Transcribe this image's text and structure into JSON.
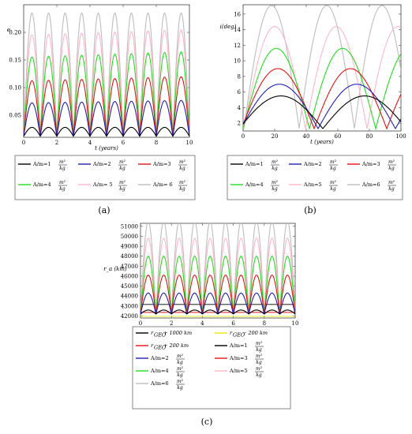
{
  "chart_data": [
    {
      "type": "line",
      "panel_label": "(a)",
      "xlabel": "t (years)",
      "ylabel": "e",
      "xlim": [
        0,
        10
      ],
      "ylim": [
        0.01,
        0.25
      ],
      "xticks": [
        "0",
        "2",
        "4",
        "6",
        "8",
        "10"
      ],
      "yticks": [
        "0.05",
        "0.10",
        "0.15",
        "0.20"
      ],
      "model": "periodic-arches",
      "period": 1.0,
      "x_peak_first": 0.5,
      "series": [
        {
          "name": "A/m=1",
          "min": 0.012,
          "max": 0.028,
          "trend": 0.0,
          "color": "#000000"
        },
        {
          "name": "A/m=2",
          "min": 0.012,
          "max": 0.072,
          "trend": 0.0005,
          "color": "#1f1fb4"
        },
        {
          "name": "A/m=3",
          "min": 0.012,
          "max": 0.112,
          "trend": 0.0008,
          "color": "#e01414"
        },
        {
          "name": "A/m=4",
          "min": 0.012,
          "max": 0.155,
          "trend": 0.001,
          "color": "#22dd22"
        },
        {
          "name": "A/m=5",
          "min": 0.012,
          "max": 0.195,
          "trend": 0.001,
          "color": "#ffb6c8"
        },
        {
          "name": "A/m=6",
          "min": 0.012,
          "max": 0.235,
          "trend": 0.0,
          "color": "#bdbdbd"
        }
      ],
      "legend_unit_num": "m²",
      "legend_unit_den": "kg",
      "legend_labels": [
        "A/m=1",
        "A/m=2",
        "A/m=3",
        "A/m=4",
        "A/m= 5",
        "A/m= 6"
      ]
    },
    {
      "type": "line",
      "panel_label": "(b)",
      "xlabel": "t (years)",
      "ylabel": "i(deg)",
      "xlim": [
        0,
        100
      ],
      "ylim": [
        1,
        17.2
      ],
      "xticks": [
        "0",
        "20",
        "40",
        "60",
        "80",
        "100"
      ],
      "yticks": [
        "2",
        "4",
        "6",
        "8",
        "10",
        "12",
        "14",
        "16"
      ],
      "model": "periodic-arches",
      "series": [
        {
          "name": "A/m=1",
          "min": 1.3,
          "max": 5.5,
          "period": 53,
          "x_peak_first": 24,
          "color": "#000000"
        },
        {
          "name": "A/m=2",
          "min": 1.3,
          "max": 7.0,
          "period": 49,
          "x_peak_first": 23,
          "color": "#1f1fb4"
        },
        {
          "name": "A/m=3",
          "min": 1.3,
          "max": 9.0,
          "period": 46,
          "x_peak_first": 22,
          "color": "#e01414"
        },
        {
          "name": "A/m=4",
          "min": 1.3,
          "max": 11.6,
          "period": 42,
          "x_peak_first": 21,
          "color": "#22dd22"
        },
        {
          "name": "A/m=5",
          "min": 1.3,
          "max": 14.4,
          "period": 39,
          "x_peak_first": 20,
          "color": "#ffb6c8"
        },
        {
          "name": "A/m=6",
          "min": 1.3,
          "max": 17.1,
          "period": 35,
          "x_peak_first": 18,
          "color": "#bdbdbd"
        }
      ],
      "legend_unit_num": "m²",
      "legend_unit_den": "kg",
      "legend_labels": [
        "A/m=1",
        "A/m=2",
        "A/m=3",
        "A/m=4",
        "A/m=5",
        "A/m=6"
      ]
    },
    {
      "type": "line",
      "panel_label": "(c)",
      "xlabel": "t (years)",
      "ylabel": "r_a (km)",
      "xlim": [
        0,
        10
      ],
      "ylim": [
        41800,
        51300
      ],
      "xticks": [
        "0",
        "2",
        "4",
        "6",
        "8",
        "10"
      ],
      "yticks": [
        "42000",
        "43000",
        "44000",
        "45000",
        "46000",
        "47000",
        "48000",
        "49000",
        "50000",
        "51000"
      ],
      "model": "periodic-arches",
      "period": 1.0,
      "x_peak_first": 0.5,
      "reference_lines": [
        {
          "name": "r_GEO + 1000 km",
          "value": 43164,
          "color": "#000000"
        },
        {
          "name": "r_GEO − 200 km",
          "value": 41964,
          "color": "#e6e600"
        },
        {
          "name": "r_GEO + 200 km",
          "value": 42364,
          "color": "#e01414"
        }
      ],
      "series": [
        {
          "name": "A/m=1",
          "min": 42200,
          "max": 42600,
          "color": "#000000"
        },
        {
          "name": "A/m=2",
          "min": 42200,
          "max": 44300,
          "color": "#1f1fb4"
        },
        {
          "name": "A/m=3",
          "min": 42200,
          "max": 46100,
          "color": "#e01414"
        },
        {
          "name": "A/m=4",
          "min": 42200,
          "max": 48000,
          "color": "#22dd22"
        },
        {
          "name": "A/m=5",
          "min": 42200,
          "max": 49800,
          "color": "#ffb6c8"
        },
        {
          "name": "A/m=6",
          "min": 42200,
          "max": 51500,
          "color": "#bdbdbd"
        }
      ],
      "legend_unit_num": "m²",
      "legend_unit_den": "kg",
      "legend_labels": [
        "A/m=1",
        "A/m=2",
        "A/m=3",
        "A/m=4",
        "A/m=5",
        "A/m=6"
      ],
      "legend_ref_labels": [
        "r",
        "GEO",
        "+ 1000 km",
        "− 200 km",
        "+ 200 km"
      ]
    }
  ]
}
